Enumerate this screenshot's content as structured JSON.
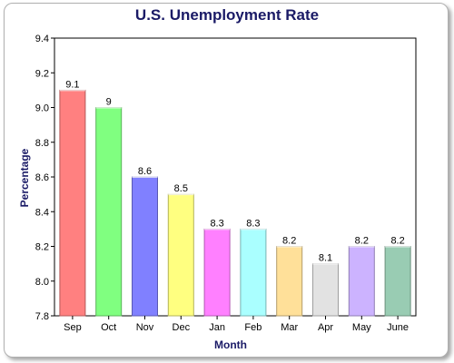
{
  "chart_data": {
    "type": "bar",
    "title": "U.S. Unemployment Rate",
    "xlabel": "Month",
    "ylabel": "Percentage",
    "categories": [
      "Sep",
      "Oct",
      "Nov",
      "Dec",
      "Jan",
      "Feb",
      "Mar",
      "Apr",
      "May",
      "June"
    ],
    "values": [
      9.1,
      9.0,
      8.6,
      8.5,
      8.3,
      8.3,
      8.2,
      8.1,
      8.2,
      8.2
    ],
    "data_labels": [
      "9.1",
      "9",
      "8.6",
      "8.5",
      "8.3",
      "8.3",
      "8.2",
      "8.1",
      "8.2",
      "8.2"
    ],
    "ylim": [
      7.8,
      9.4
    ],
    "yticks": [
      7.8,
      8.0,
      8.2,
      8.4,
      8.6,
      8.8,
      9.0,
      9.2,
      9.4
    ],
    "ytick_labels": [
      "7.8",
      "8.0",
      "8.2",
      "8.4",
      "8.6",
      "8.8",
      "9.0",
      "9.2",
      "9.4"
    ],
    "grid": false,
    "legend": "none",
    "bar_colors": [
      "#ff8080",
      "#80ff80",
      "#8080ff",
      "#ffff80",
      "#ff80ff",
      "#aaffff",
      "#ffe099",
      "#e2e2e2",
      "#ccb3ff",
      "#99ccb3"
    ],
    "bar_stroke_colors": [
      "#b35959",
      "#59b359",
      "#5959b3",
      "#b3b359",
      "#b359b3",
      "#77b3b3",
      "#b39d6b",
      "#9e9e9e",
      "#8f7db3",
      "#6b8f7d"
    ]
  }
}
